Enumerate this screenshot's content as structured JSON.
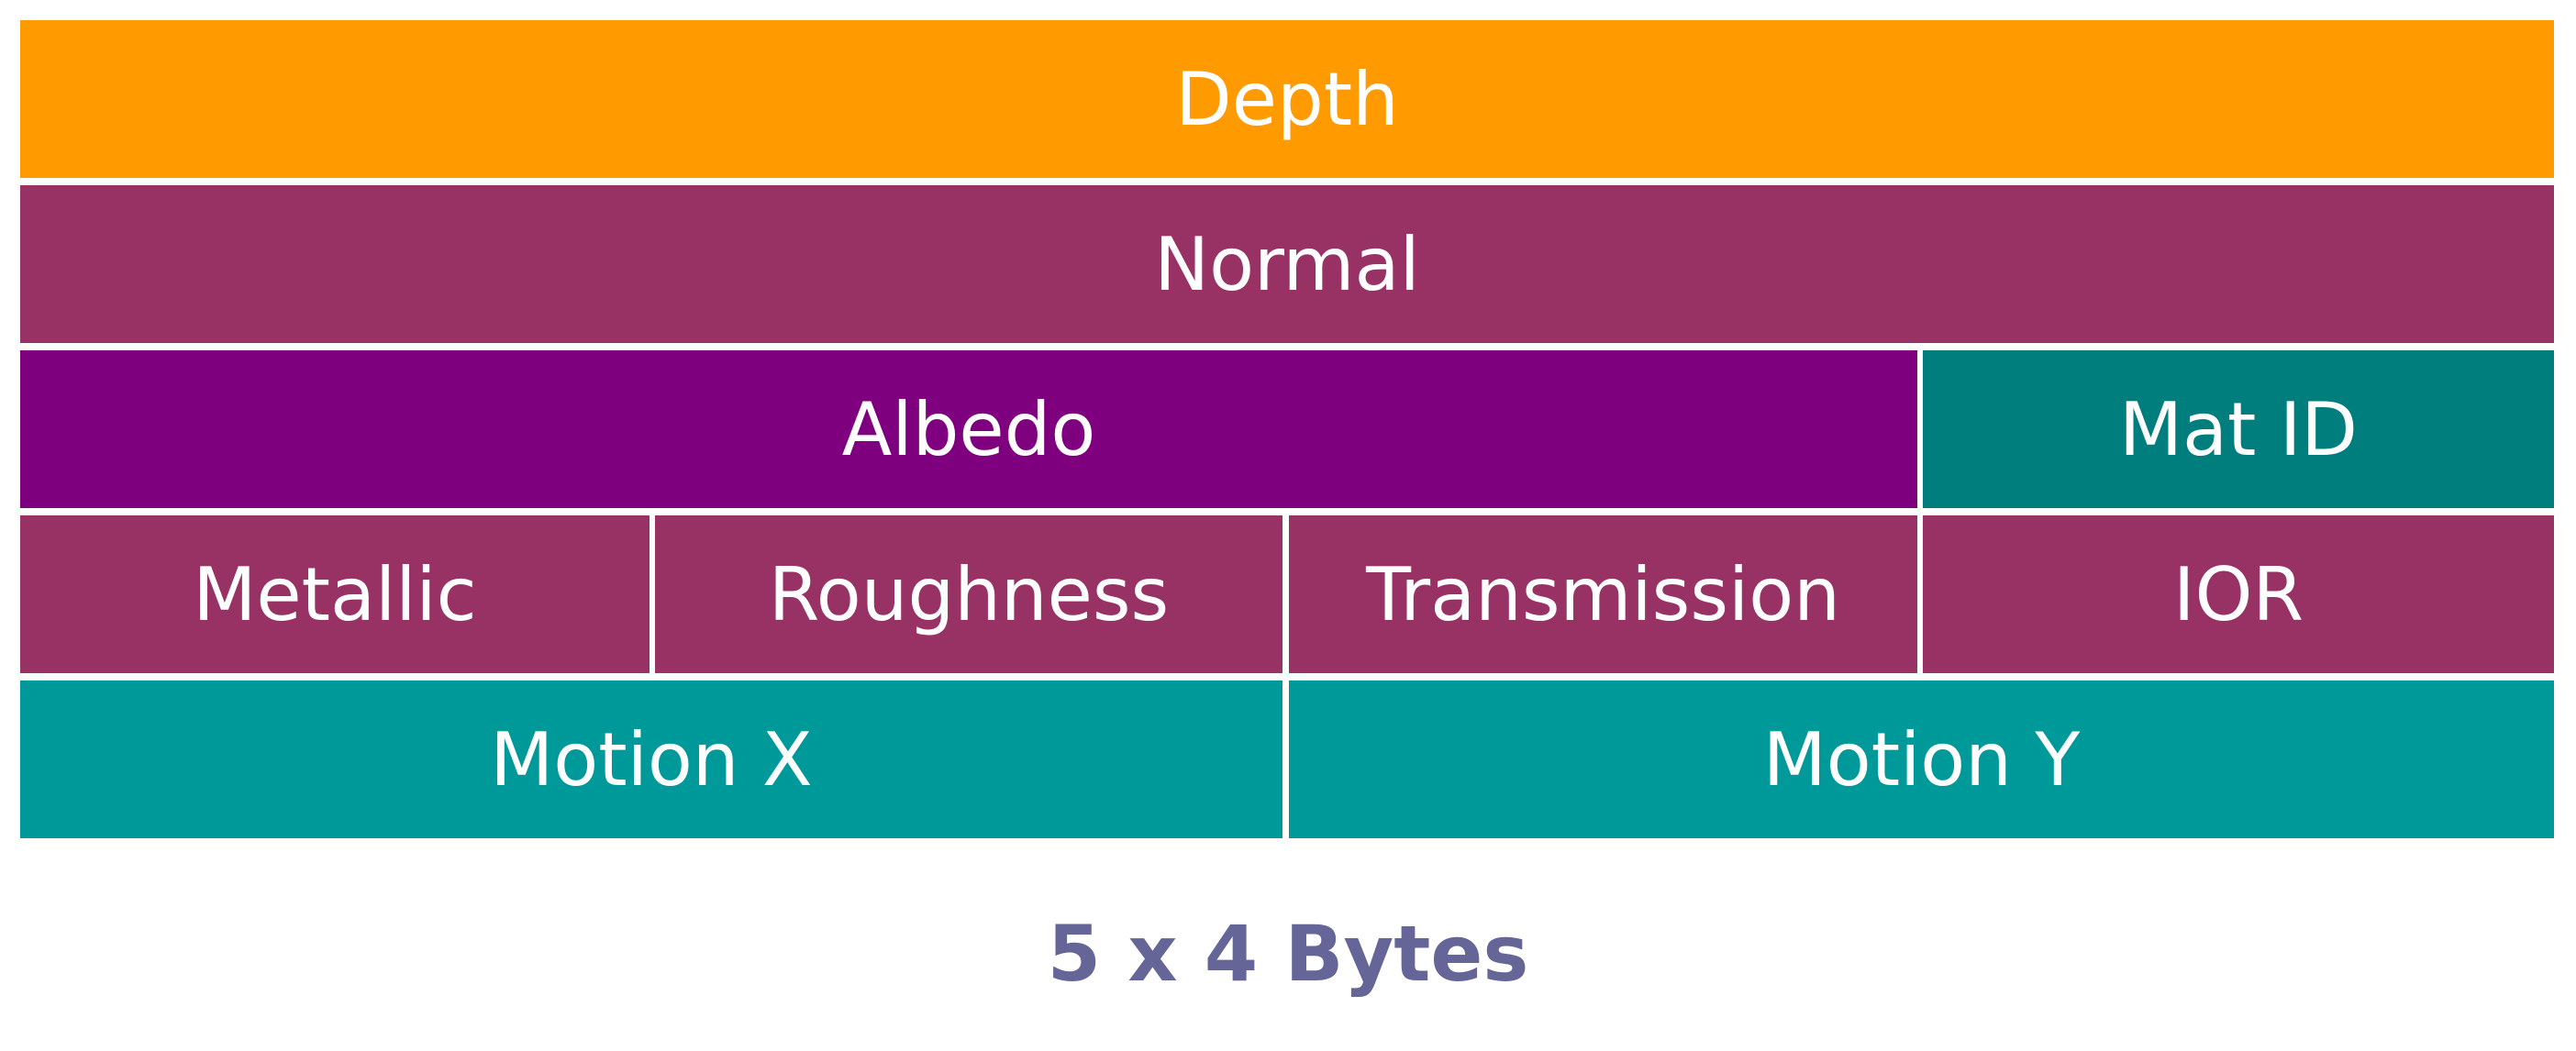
{
  "rows": [
    {
      "cells": [
        {
          "label": "Depth",
          "color": "#ff9a00"
        }
      ]
    },
    {
      "cells": [
        {
          "label": "Normal",
          "color": "#983264"
        }
      ]
    },
    {
      "cells": [
        {
          "label": "Albedo",
          "color": "#7f007f"
        },
        {
          "label": "Mat ID",
          "color": "#007d7d"
        }
      ]
    },
    {
      "cells": [
        {
          "label": "Metallic",
          "color": "#983264"
        },
        {
          "label": "Roughness",
          "color": "#983264"
        },
        {
          "label": "Transmission",
          "color": "#983264"
        },
        {
          "label": "IOR",
          "color": "#983264"
        }
      ]
    },
    {
      "cells": [
        {
          "label": "Motion X",
          "color": "#009999"
        },
        {
          "label": "Motion Y",
          "color": "#009999"
        }
      ]
    }
  ],
  "footer": {
    "caption": "5 x 4 Bytes",
    "color": "#656598"
  }
}
